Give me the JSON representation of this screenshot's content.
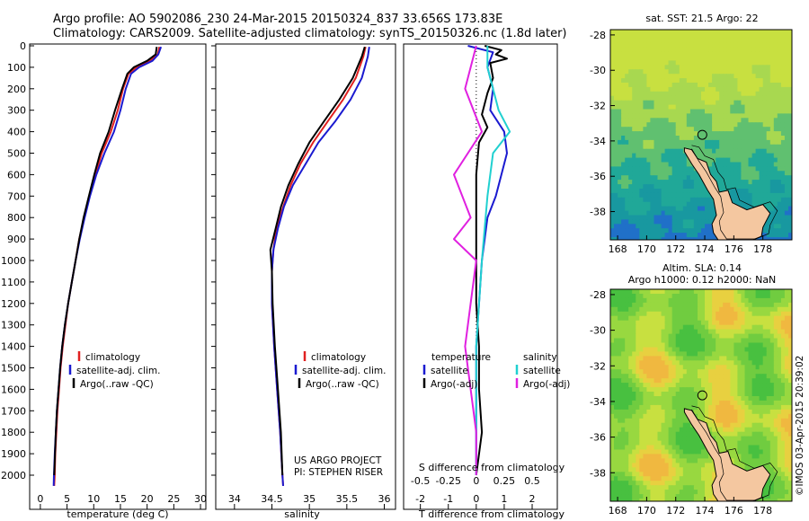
{
  "header": {
    "title_line1": "Argo profile: AO 5902086_230 24-Mar-2015 20150324_837 33.656S 173.83E",
    "title_line2": "Climatology: CARS2009. Satellite-adjusted climatology: synTS_20150326.nc (1.8d later)"
  },
  "colors": {
    "climatology": "#e02020",
    "satellite": "#1a1ad0",
    "argo": "#000000",
    "salinity_satellite": "#20d0d0",
    "salinity_argo": "#e020e0",
    "land": "#f4c7a0"
  },
  "chart_data": [
    {
      "type": "line",
      "panel": "temperature",
      "xlabel": "temperature (deg C)",
      "xlim": [
        -2,
        31
      ],
      "xticks": [
        "0",
        "5",
        "10",
        "15",
        "20",
        "25",
        "30"
      ],
      "ylim": [
        2060,
        0
      ],
      "yticks": [
        "0",
        "100",
        "200",
        "300",
        "400",
        "500",
        "600",
        "700",
        "800",
        "900",
        "1000",
        "1100",
        "1200",
        "1300",
        "1400",
        "1500",
        "1600",
        "1700",
        "1800",
        "1900",
        "2000"
      ],
      "legend": [
        "climatology",
        "satellite-adj. clim.",
        "Argo(..raw -QC)"
      ],
      "series": [
        {
          "name": "climatology",
          "points": [
            [
              22.3,
              5
            ],
            [
              22.0,
              40
            ],
            [
              20.5,
              70
            ],
            [
              18.0,
              100
            ],
            [
              16.5,
              130
            ],
            [
              15.5,
              200
            ],
            [
              14.5,
              300
            ],
            [
              13.2,
              400
            ],
            [
              11.5,
              500
            ],
            [
              10.3,
              600
            ],
            [
              9.2,
              700
            ],
            [
              8.2,
              800
            ],
            [
              7.3,
              900
            ],
            [
              6.6,
              1000
            ],
            [
              5.9,
              1100
            ],
            [
              5.2,
              1200
            ],
            [
              4.7,
              1300
            ],
            [
              4.2,
              1400
            ],
            [
              3.8,
              1500
            ],
            [
              3.5,
              1600
            ],
            [
              3.2,
              1700
            ],
            [
              3.0,
              1800
            ],
            [
              2.8,
              1900
            ],
            [
              2.7,
              2000
            ],
            [
              2.6,
              2050
            ]
          ]
        },
        {
          "name": "satellite-adj. clim.",
          "points": [
            [
              22.6,
              5
            ],
            [
              22.1,
              40
            ],
            [
              21.0,
              70
            ],
            [
              18.5,
              100
            ],
            [
              17.0,
              130
            ],
            [
              16.0,
              200
            ],
            [
              15.0,
              300
            ],
            [
              13.8,
              400
            ],
            [
              12.0,
              500
            ],
            [
              10.5,
              600
            ],
            [
              9.3,
              700
            ],
            [
              8.3,
              800
            ],
            [
              7.4,
              900
            ],
            [
              6.6,
              1000
            ],
            [
              5.9,
              1100
            ],
            [
              5.2,
              1200
            ],
            [
              4.6,
              1300
            ],
            [
              4.1,
              1400
            ],
            [
              3.7,
              1500
            ],
            [
              3.4,
              1600
            ],
            [
              3.1,
              1700
            ],
            [
              2.9,
              1800
            ],
            [
              2.7,
              1900
            ],
            [
              2.55,
              2000
            ],
            [
              2.5,
              2050
            ]
          ]
        },
        {
          "name": "Argo(..raw -QC)",
          "points": [
            [
              21.8,
              5
            ],
            [
              21.6,
              40
            ],
            [
              20.0,
              70
            ],
            [
              17.5,
              100
            ],
            [
              16.3,
              130
            ],
            [
              15.3,
              200
            ],
            [
              14.0,
              300
            ],
            [
              12.8,
              400
            ],
            [
              11.2,
              500
            ],
            [
              10.1,
              600
            ],
            [
              9.1,
              700
            ],
            [
              8.1,
              800
            ],
            [
              7.3,
              900
            ],
            [
              6.6,
              1000
            ],
            [
              5.9,
              1100
            ],
            [
              5.2,
              1200
            ],
            [
              4.6,
              1300
            ],
            [
              4.1,
              1400
            ],
            [
              3.7,
              1500
            ],
            [
              3.4,
              1600
            ],
            [
              3.1,
              1700
            ],
            [
              2.9,
              1800
            ],
            [
              2.75,
              1900
            ],
            [
              2.6,
              2000
            ]
          ]
        }
      ]
    },
    {
      "type": "line",
      "panel": "salinity",
      "xlabel": "salinity",
      "xlim": [
        33.75,
        36.15
      ],
      "xticks": [
        "34",
        "34.5",
        "35",
        "35.5",
        "36"
      ],
      "ylim": [
        2060,
        0
      ],
      "legend": [
        "climatology",
        "satellite-adj. clim.",
        "Argo(..raw -QC)"
      ],
      "annotations": [
        "US ARGO PROJECT",
        "PI: STEPHEN RISER"
      ],
      "series": [
        {
          "name": "climatology",
          "points": [
            [
              35.75,
              5
            ],
            [
              35.72,
              50
            ],
            [
              35.62,
              150
            ],
            [
              35.45,
              250
            ],
            [
              35.25,
              350
            ],
            [
              35.05,
              450
            ],
            [
              34.88,
              550
            ],
            [
              34.75,
              650
            ],
            [
              34.65,
              750
            ],
            [
              34.56,
              850
            ],
            [
              34.52,
              950
            ],
            [
              34.5,
              1050
            ],
            [
              34.5,
              1200
            ],
            [
              34.53,
              1400
            ],
            [
              34.57,
              1600
            ],
            [
              34.61,
              1800
            ],
            [
              34.64,
              2000
            ],
            [
              34.65,
              2050
            ]
          ]
        },
        {
          "name": "satellite-adj. clim.",
          "points": [
            [
              35.8,
              5
            ],
            [
              35.78,
              50
            ],
            [
              35.7,
              150
            ],
            [
              35.55,
              250
            ],
            [
              35.35,
              350
            ],
            [
              35.12,
              450
            ],
            [
              34.95,
              550
            ],
            [
              34.78,
              650
            ],
            [
              34.66,
              750
            ],
            [
              34.58,
              850
            ],
            [
              34.52,
              950
            ],
            [
              34.5,
              1050
            ],
            [
              34.5,
              1200
            ],
            [
              34.53,
              1400
            ],
            [
              34.57,
              1600
            ],
            [
              34.61,
              1800
            ],
            [
              34.64,
              2000
            ],
            [
              34.65,
              2050
            ]
          ]
        },
        {
          "name": "Argo(..raw -QC)",
          "points": [
            [
              35.74,
              5
            ],
            [
              35.7,
              50
            ],
            [
              35.58,
              150
            ],
            [
              35.4,
              250
            ],
            [
              35.2,
              350
            ],
            [
              35.0,
              450
            ],
            [
              34.85,
              550
            ],
            [
              34.72,
              650
            ],
            [
              34.62,
              750
            ],
            [
              34.55,
              850
            ],
            [
              34.48,
              950
            ],
            [
              34.5,
              1050
            ],
            [
              34.51,
              1200
            ],
            [
              34.54,
              1400
            ],
            [
              34.58,
              1600
            ],
            [
              34.62,
              1800
            ],
            [
              34.64,
              2000
            ]
          ]
        }
      ]
    },
    {
      "type": "line",
      "panel": "difference",
      "xlabel": "T difference from climatology",
      "top_xlabel": "S difference from climatology",
      "xlim": [
        -2.6,
        2.9
      ],
      "xticks": [
        "-2",
        "-1",
        "0",
        "1",
        "2"
      ],
      "top_xticks": [
        "-0.5",
        "-0.25",
        "0",
        "0.25",
        "0.5"
      ],
      "ylim": [
        2060,
        0
      ],
      "legend_temperature": [
        "temperature",
        "satellite",
        "Argo(-adj)"
      ],
      "legend_salinity": [
        "salinity",
        "satellite",
        "Argo(-adj)"
      ],
      "series": [
        {
          "name": "temperature satellite",
          "points": [
            [
              -0.3,
              0
            ],
            [
              0.6,
              30
            ],
            [
              0.4,
              100
            ],
            [
              0.6,
              200
            ],
            [
              0.5,
              300
            ],
            [
              1.0,
              400
            ],
            [
              1.1,
              500
            ],
            [
              0.9,
              600
            ],
            [
              0.7,
              700
            ],
            [
              0.4,
              800
            ],
            [
              0.3,
              900
            ],
            [
              0.2,
              1000
            ],
            [
              0.1,
              1200
            ],
            [
              0.0,
              1400
            ],
            [
              0.0,
              1600
            ],
            [
              0.0,
              1800
            ],
            [
              0.0,
              2000
            ]
          ]
        },
        {
          "name": "temperature Argo(-adj)",
          "points": [
            [
              0.3,
              0
            ],
            [
              0.9,
              20
            ],
            [
              0.7,
              40
            ],
            [
              1.1,
              60
            ],
            [
              0.5,
              80
            ],
            [
              0.6,
              150
            ],
            [
              0.4,
              220
            ],
            [
              0.2,
              320
            ],
            [
              0.4,
              380
            ],
            [
              0.1,
              450
            ],
            [
              0.0,
              600
            ],
            [
              0.0,
              800
            ],
            [
              0.0,
              1000
            ],
            [
              0.0,
              1200
            ],
            [
              0.1,
              1400
            ],
            [
              0.1,
              1600
            ],
            [
              0.2,
              1800
            ],
            [
              0.0,
              2000
            ]
          ]
        },
        {
          "name": "salinity satellite",
          "points": [
            [
              0.1,
              0
            ],
            [
              0.1,
              100
            ],
            [
              0.2,
              300
            ],
            [
              0.3,
              400
            ],
            [
              0.15,
              500
            ],
            [
              0.1,
              700
            ],
            [
              0.05,
              1000
            ],
            [
              0.0,
              1400
            ],
            [
              0.0,
              2000
            ]
          ]
        },
        {
          "name": "salinity Argo(-adj)",
          "points": [
            [
              0.0,
              0
            ],
            [
              -0.1,
              200
            ],
            [
              0.05,
              400
            ],
            [
              -0.2,
              600
            ],
            [
              -0.05,
              800
            ],
            [
              -0.2,
              900
            ],
            [
              0.0,
              1000
            ],
            [
              -0.05,
              1200
            ],
            [
              -0.1,
              1400
            ],
            [
              -0.05,
              1600
            ],
            [
              0.0,
              1800
            ],
            [
              0.0,
              2000
            ]
          ]
        }
      ]
    }
  ],
  "maps": {
    "sst": {
      "title": "sat. SST: 21.5 Argo: 22",
      "lon_ticks": [
        "168",
        "170",
        "172",
        "174",
        "176",
        "178"
      ],
      "lat_ticks": [
        "-28",
        "-30",
        "-32",
        "-34",
        "-36",
        "-38"
      ],
      "argo_marker": {
        "lon": 173.83,
        "lat": -33.656
      }
    },
    "sla": {
      "title_line1": "Altim. SLA: 0.14",
      "title_line2": "Argo h1000: 0.12 h2000: NaN",
      "lon_ticks": [
        "168",
        "170",
        "172",
        "174",
        "176",
        "178"
      ],
      "lat_ticks": [
        "-28",
        "-30",
        "-32",
        "-34",
        "-36",
        "-38"
      ],
      "argo_marker": {
        "lon": 173.83,
        "lat": -33.656
      }
    }
  },
  "footer": {
    "credit": "©IMOS 03-Apr-2015 20:39:02"
  }
}
